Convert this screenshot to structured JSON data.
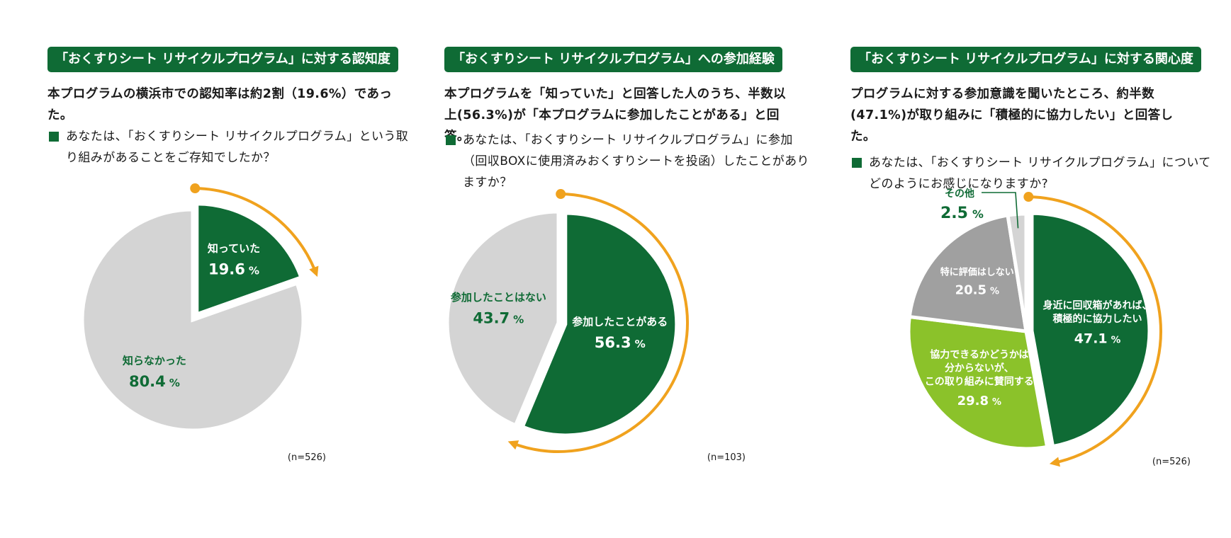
{
  "chart_data": [
    {
      "type": "pie",
      "title": "「おくすりシート リサイクルプログラム」に対する認知度",
      "summary": "本プログラムの横浜市での認知率は約2割（19.6%）であった。",
      "question": "あなたは、「おくすりシート リサイクルプログラム」という取り組みがあることをご存知でしたか？",
      "n_label": "(n=526)",
      "percent_sign": "%",
      "slices": [
        {
          "label": "知っていた",
          "value": 19.6,
          "value_text": "19.6",
          "color": "#0f6b35",
          "text_color": "#ffffff",
          "exploded": true
        },
        {
          "label": "知らなかった",
          "value": 80.4,
          "value_text": "80.4",
          "color": "#d4d4d4",
          "text_color": "#0f6b35",
          "exploded": false
        }
      ],
      "arrow_color": "#f0a21e"
    },
    {
      "type": "pie",
      "title": "「おくすりシート リサイクルプログラム」への参加経験",
      "summary": "本プログラムを「知っていた」と回答した人のうち、半数以上(56.3%)が「本プログラムに参加したことがある」と回答。",
      "question": "あなたは、「おくすりシート リサイクルプログラム」に参加（回収BOXに使用済みおくすりシートを投函）したことがありますか？",
      "n_label": "(n=103)",
      "percent_sign": "%",
      "slices": [
        {
          "label": "参加したことがある",
          "value": 56.3,
          "value_text": "56.3",
          "color": "#0f6b35",
          "text_color": "#ffffff",
          "exploded": true
        },
        {
          "label": "参加したことはない",
          "value": 43.7,
          "value_text": "43.7",
          "color": "#d4d4d4",
          "text_color": "#0f6b35",
          "exploded": false
        }
      ],
      "arrow_color": "#f0a21e"
    },
    {
      "type": "pie",
      "title": "「おくすりシート リサイクルプログラム」に対する関心度",
      "summary": "プログラムに対する参加意識を聞いたところ、約半数(47.1%)が取り組みに「積極的に協力したい」と回答した。",
      "question": "あなたは、「おくすりシート リサイクルプログラム」についてどのようにお感じになりますか?",
      "n_label": "(n=526)",
      "percent_sign": "%",
      "slices": [
        {
          "label": "身近に回収箱があれば、積極的に協力したい",
          "label_lines": [
            "身近に回収箱があれば、",
            "積極的に協力したい"
          ],
          "value": 47.1,
          "value_text": "47.1",
          "color": "#0f6b35",
          "text_color": "#ffffff",
          "exploded": true
        },
        {
          "label": "協力できるかどうかは分からないが、この取り組みに賛同する",
          "label_lines": [
            "協力できるかどうかは",
            "分からないが、",
            "この取り組みに賛同する"
          ],
          "value": 29.8,
          "value_text": "29.8",
          "color": "#8bc22a",
          "text_color": "#ffffff",
          "exploded": false
        },
        {
          "label": "特に評価はしない",
          "label_lines": [
            "特に評価はしない"
          ],
          "value": 20.5,
          "value_text": "20.5",
          "color": "#a0a0a0",
          "text_color": "#ffffff",
          "exploded": false
        },
        {
          "label": "その他",
          "label_lines": [
            "その他"
          ],
          "value": 2.5,
          "value_text": "2.5",
          "color": "#d4d4d4",
          "text_color": "#0f6b35",
          "exploded": false,
          "callout": true
        }
      ],
      "arrow_color": "#f0a21e"
    }
  ]
}
